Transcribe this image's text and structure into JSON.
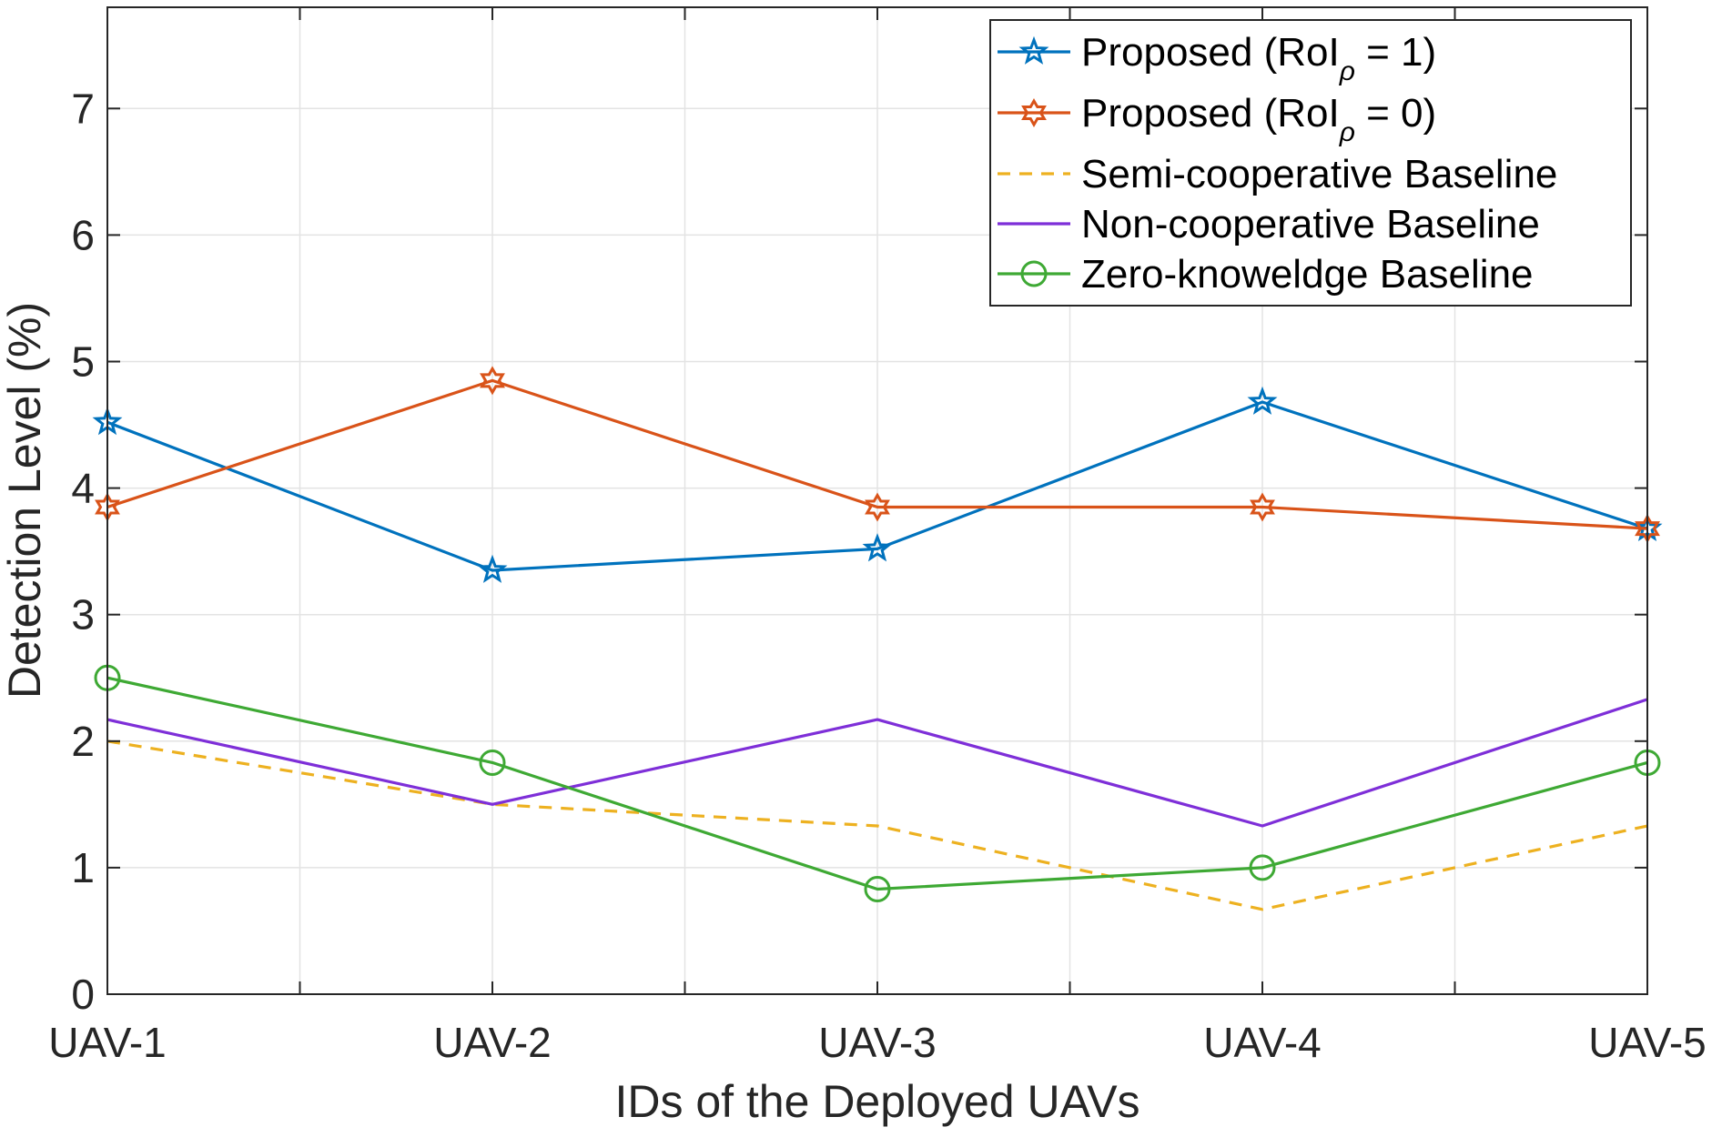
{
  "chart_data": {
    "type": "line",
    "categories": [
      "UAV-1",
      "UAV-2",
      "UAV-3",
      "UAV-4",
      "UAV-5"
    ],
    "xlabel": "IDs of the Deployed UAVs",
    "ylabel": "Detection Level (%)",
    "ylim": [
      0,
      7.8
    ],
    "yticks": [
      0,
      1,
      2,
      3,
      4,
      5,
      6,
      7
    ],
    "grid": true,
    "legend_position": "top-right",
    "series": [
      {
        "name": "Proposed (RoI = 1)",
        "legend_main": "Proposed (RoI",
        "legend_sub": "ρ",
        "legend_tail": " = 1)",
        "color": "#0072BD",
        "style": "solid",
        "marker": "star",
        "values": [
          4.52,
          3.35,
          3.52,
          4.68,
          3.68
        ]
      },
      {
        "name": "Proposed (RoI = 0)",
        "legend_main": "Proposed (RoI",
        "legend_sub": "ρ",
        "legend_tail": " = 0)",
        "color": "#D95319",
        "style": "solid",
        "marker": "hexagram",
        "values": [
          3.85,
          4.85,
          3.85,
          3.85,
          3.68
        ]
      },
      {
        "name": "Semi-cooperative Baseline",
        "color": "#EDB120",
        "style": "dashed",
        "marker": "none",
        "values": [
          2.0,
          1.5,
          1.33,
          0.67,
          1.33
        ]
      },
      {
        "name": "Non-cooperative Baseline",
        "color": "#7E2FD8",
        "style": "solid",
        "marker": "none",
        "values": [
          2.17,
          1.5,
          2.17,
          1.33,
          2.33
        ]
      },
      {
        "name": "Zero-knoweldge Baseline",
        "color": "#3EA934",
        "style": "solid",
        "marker": "circle",
        "values": [
          2.5,
          1.83,
          0.83,
          1.0,
          1.83
        ]
      }
    ]
  }
}
